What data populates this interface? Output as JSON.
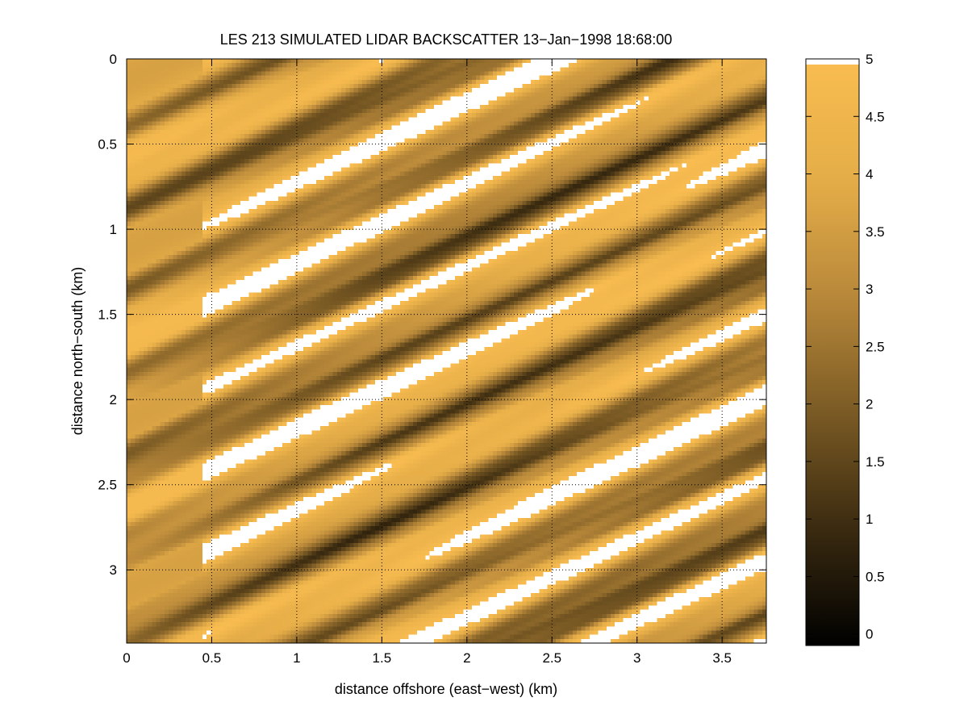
{
  "chart_data": {
    "type": "heatmap",
    "title": "LES 213 SIMULATED LIDAR BACKSCATTER 13−Jan−1998 18:68:00",
    "xlabel": "distance offshore (east−west) (km)",
    "ylabel": "distance north−south (km)",
    "xlim": [
      0,
      3.76
    ],
    "ylim": [
      0,
      3.43
    ],
    "y_reversed": true,
    "grid": true,
    "x_ticks": [
      0,
      0.5,
      1,
      1.5,
      2,
      2.5,
      3,
      3.5
    ],
    "x_tick_labels": [
      "0",
      "0.5",
      "1",
      "1.5",
      "2",
      "2.5",
      "3",
      "3.5"
    ],
    "y_ticks": [
      0,
      0.5,
      1,
      1.5,
      2,
      2.5,
      3
    ],
    "y_tick_labels": [
      "0",
      "0.5",
      "1",
      "1.5",
      "2",
      "2.5",
      "3"
    ],
    "colorbar": {
      "range": [
        -0.1,
        5
      ],
      "ticks": [
        0,
        0.5,
        1,
        1.5,
        2,
        2.5,
        3,
        3.5,
        4,
        4.5,
        5
      ],
      "tick_labels": [
        "0",
        "0.5",
        "1",
        "1.5",
        "2",
        "2.5",
        "3",
        "3.5",
        "4",
        "4.5",
        "5"
      ],
      "colormap": [
        "#000000",
        "#3a2a10",
        "#7a5a24",
        "#b8883a",
        "#e5ad48",
        "#f8bc50"
      ],
      "saturated_color": "#ffffff"
    },
    "field": {
      "description_units": "backscatter",
      "band_slope": -0.44,
      "band_period_km": 0.5,
      "saturated_above": 4.95
    }
  }
}
